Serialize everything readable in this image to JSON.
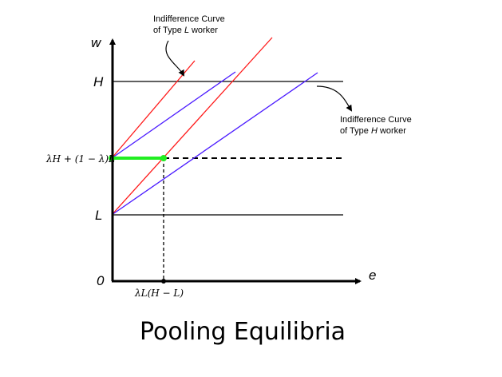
{
  "diagram": {
    "title": "Pooling Equilibria",
    "axes": {
      "y_label": "w",
      "x_label": "e",
      "origin_label": "0",
      "y_tick_H": "H",
      "y_tick_L": "L",
      "y_tick_pool": "λH + (1 − λ)L",
      "x_tick_pool": "λL(H − L)"
    },
    "annotations": {
      "type_L_line1": "Indifference Curve",
      "type_L_line2": "of Type",
      "type_L_var": "L",
      "type_L_tail": "worker",
      "type_H_line1": "Indifference Curve",
      "type_H_line2": "of Type",
      "type_H_var": "H",
      "type_H_tail": "worker"
    },
    "colors": {
      "type_L_curves": "#ff1a1a",
      "type_H_curves": "#4a1aff",
      "pooling_segment": "#22ee22",
      "axes": "#000000"
    }
  }
}
